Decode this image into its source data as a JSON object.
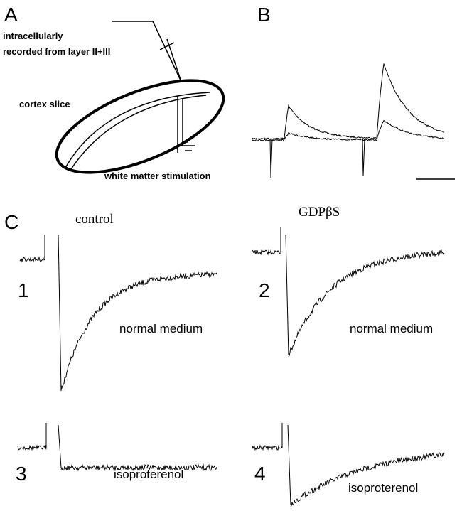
{
  "panels": {
    "a": {
      "label": "A",
      "electrode_label": [
        "intracellularly",
        "recorded from layer II+III"
      ],
      "slice_label": "cortex slice",
      "stimulation_label": "white matter stimulation"
    },
    "b": {
      "label": "B"
    },
    "c": {
      "label": "C",
      "columns": [
        "control",
        "GDPβS"
      ],
      "traces": [
        {
          "number": "1",
          "condition": "normal medium"
        },
        {
          "number": "2",
          "condition": "normal medium"
        },
        {
          "number": "3",
          "condition": "isoproterenol"
        },
        {
          "number": "4",
          "condition": "isoproterenol"
        }
      ]
    }
  }
}
